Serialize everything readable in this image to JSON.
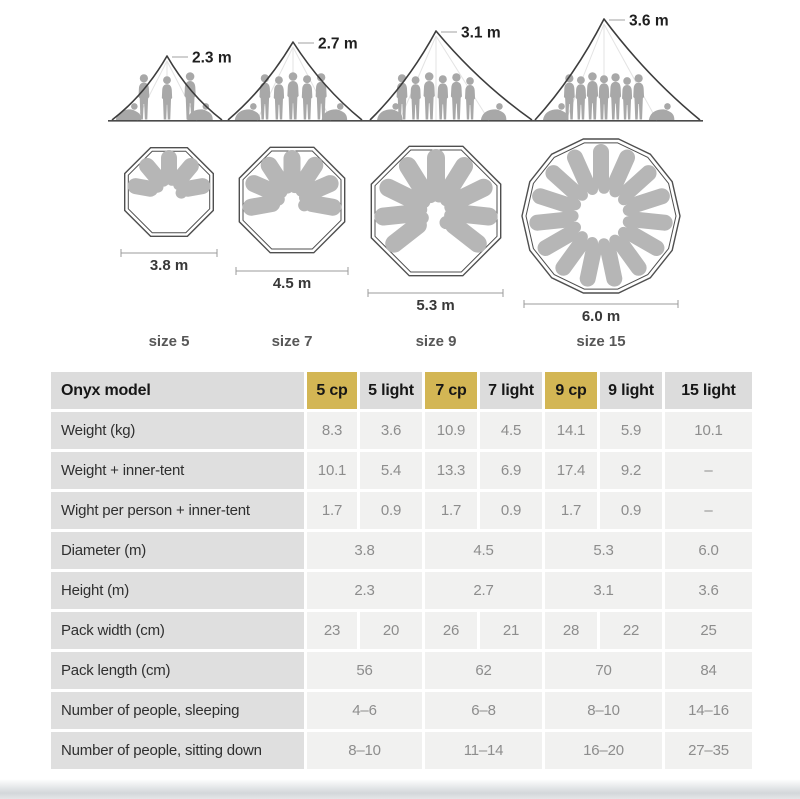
{
  "diagram": {
    "tents": [
      {
        "height_label": "2.3 m",
        "people_standing": 3,
        "people_sitting": 2
      },
      {
        "height_label": "2.7 m",
        "people_standing": 5,
        "people_sitting": 2
      },
      {
        "height_label": "3.1 m",
        "people_standing": 6,
        "people_sitting": 2
      },
      {
        "height_label": "3.6 m",
        "people_standing": 7,
        "people_sitting": 2
      }
    ],
    "floorplans": [
      {
        "diameter_label": "3.8 m",
        "size_label": "size 5",
        "sleeping_pads": 5,
        "polygon_sides": 8
      },
      {
        "diameter_label": "4.5 m",
        "size_label": "size 7",
        "sleeping_pads": 7,
        "polygon_sides": 8
      },
      {
        "diameter_label": "5.3 m",
        "size_label": "size 9",
        "sleeping_pads": 9,
        "polygon_sides": 8
      },
      {
        "diameter_label": "6.0 m",
        "size_label": "size 15",
        "sleeping_pads": 15,
        "polygon_sides": 14
      }
    ]
  },
  "colors": {
    "highlight_gold": "#d3b654",
    "header_gray": "#dcdcdc",
    "row_label_gray": "#dfdfdf",
    "value_cell_gray": "#f1f1f0",
    "value_text": "#8d8d8d",
    "silhouette_gray": "#a8a8a8",
    "pad_gray": "#b6b6b6"
  },
  "chart_data": {
    "type": "table",
    "corner_label": "Onyx model",
    "columns": [
      {
        "label": "5 cp",
        "highlight": true
      },
      {
        "label": "5 light",
        "highlight": false
      },
      {
        "label": "7 cp",
        "highlight": true
      },
      {
        "label": "7 light",
        "highlight": false
      },
      {
        "label": "9 cp",
        "highlight": true
      },
      {
        "label": "9 light",
        "highlight": false
      },
      {
        "label": "15 light",
        "highlight": false
      }
    ],
    "rows": [
      {
        "label": "Weight (kg)",
        "cells": [
          {
            "v": "8.3",
            "span": 1
          },
          {
            "v": "3.6",
            "span": 1
          },
          {
            "v": "10.9",
            "span": 1
          },
          {
            "v": "4.5",
            "span": 1
          },
          {
            "v": "14.1",
            "span": 1
          },
          {
            "v": "5.9",
            "span": 1
          },
          {
            "v": "10.1",
            "span": 1
          }
        ]
      },
      {
        "label": "Weight + inner-tent",
        "cells": [
          {
            "v": "10.1",
            "span": 1
          },
          {
            "v": "5.4",
            "span": 1
          },
          {
            "v": "13.3",
            "span": 1
          },
          {
            "v": "6.9",
            "span": 1
          },
          {
            "v": "17.4",
            "span": 1
          },
          {
            "v": "9.2",
            "span": 1
          },
          {
            "v": "–",
            "span": 1
          }
        ]
      },
      {
        "label": "Wight per person + inner-tent",
        "cells": [
          {
            "v": "1.7",
            "span": 1
          },
          {
            "v": "0.9",
            "span": 1
          },
          {
            "v": "1.7",
            "span": 1
          },
          {
            "v": "0.9",
            "span": 1
          },
          {
            "v": "1.7",
            "span": 1
          },
          {
            "v": "0.9",
            "span": 1
          },
          {
            "v": "–",
            "span": 1
          }
        ]
      },
      {
        "label": "Diameter (m)",
        "cells": [
          {
            "v": "3.8",
            "span": 2
          },
          {
            "v": "4.5",
            "span": 2
          },
          {
            "v": "5.3",
            "span": 2
          },
          {
            "v": "6.0",
            "span": 1
          }
        ]
      },
      {
        "label": "Height (m)",
        "cells": [
          {
            "v": "2.3",
            "span": 2
          },
          {
            "v": "2.7",
            "span": 2
          },
          {
            "v": "3.1",
            "span": 2
          },
          {
            "v": "3.6",
            "span": 1
          }
        ]
      },
      {
        "label": "Pack width (cm)",
        "cells": [
          {
            "v": "23",
            "span": 1
          },
          {
            "v": "20",
            "span": 1
          },
          {
            "v": "26",
            "span": 1
          },
          {
            "v": "21",
            "span": 1
          },
          {
            "v": "28",
            "span": 1
          },
          {
            "v": "22",
            "span": 1
          },
          {
            "v": "25",
            "span": 1
          }
        ]
      },
      {
        "label": "Pack length (cm)",
        "cells": [
          {
            "v": "56",
            "span": 2
          },
          {
            "v": "62",
            "span": 2
          },
          {
            "v": "70",
            "span": 2
          },
          {
            "v": "84",
            "span": 1
          }
        ]
      },
      {
        "label": "Number of people, sleeping",
        "cells": [
          {
            "v": "4–6",
            "span": 2
          },
          {
            "v": "6–8",
            "span": 2
          },
          {
            "v": "8–10",
            "span": 2
          },
          {
            "v": "14–16",
            "span": 1
          }
        ]
      },
      {
        "label": "Number of people, sitting down",
        "cells": [
          {
            "v": "8–10",
            "span": 2
          },
          {
            "v": "11–14",
            "span": 2
          },
          {
            "v": "16–20",
            "span": 2
          },
          {
            "v": "27–35",
            "span": 1
          }
        ]
      }
    ]
  }
}
